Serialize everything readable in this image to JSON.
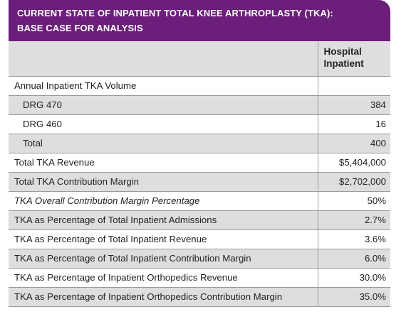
{
  "title": {
    "line1": "CURRENT STATE OF INPATIENT TOTAL KNEE ARTHROPLASTY (TKA):",
    "line2": "BASE CASE FOR ANALYSIS"
  },
  "table": {
    "column_header": "Hospital Inpatient",
    "rows": [
      {
        "label": "Annual Inpatient TKA Volume",
        "value": ""
      },
      {
        "label": "DRG 470",
        "value": "384"
      },
      {
        "label": "DRG 460",
        "value": "16"
      },
      {
        "label": "Total",
        "value": "400"
      },
      {
        "label": "Total TKA Revenue",
        "value": "$5,404,000"
      },
      {
        "label": "Total TKA Contribution Margin",
        "value": "$2,702,000"
      },
      {
        "label": "TKA Overall Contribution Margin Percentage",
        "value": "50%"
      },
      {
        "label": "TKA as Percentage of Total Inpatient Admissions",
        "value": "2.7%"
      },
      {
        "label": "TKA as Percentage of Total Inpatient Revenue",
        "value": "3.6%"
      },
      {
        "label": "TKA as Percentage of Total Inpatient Contribution Margin",
        "value": "6.0%"
      },
      {
        "label": "TKA as Percentage of Inpatient Orthopedics Revenue",
        "value": "30.0%"
      },
      {
        "label": "TKA as Percentage of Inpatient Orthopedics Contribution Margin",
        "value": "35.0%"
      }
    ]
  },
  "colors": {
    "title_background": "#6b1e7a",
    "shaded_row": "#dedede",
    "rule": "#9a9a9a"
  }
}
